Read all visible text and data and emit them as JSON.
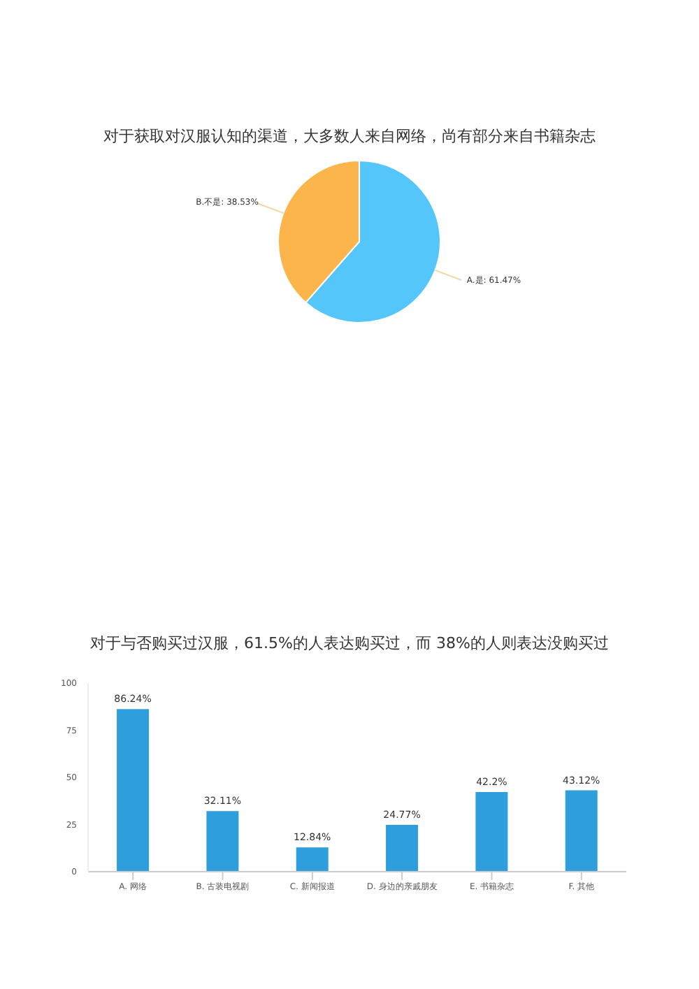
{
  "chart_data": [
    {
      "type": "pie",
      "title": "对于获取对汉服认知的渠道，大多数人来自网络，尚有部分来自书籍杂志",
      "categories": [
        "A.是",
        "B.不是"
      ],
      "values": [
        61.47,
        38.53
      ],
      "value_labels": [
        "61.47%",
        "38.53%"
      ],
      "colors": [
        "#55c6f9",
        "#fbb54b"
      ]
    },
    {
      "type": "bar",
      "title": "对于与否购买过汉服，61.5%的人表达购买过，而 38%的人则表达没购买过",
      "categories": [
        "A. 网络",
        "B. 古装电视剧",
        "C. 新闻报道",
        "D. 身边的亲戚朋友",
        "E. 书籍杂志",
        "F. 其他"
      ],
      "values": [
        86.24,
        32.11,
        12.84,
        24.77,
        42.2,
        43.12
      ],
      "value_labels": [
        "86.24%",
        "32.11%",
        "12.84%",
        "24.77%",
        "42.2%",
        "43.12%"
      ],
      "color": "#2e9fdc",
      "ylim": [
        0,
        100
      ],
      "yticks": [
        0,
        25,
        50,
        75,
        100
      ],
      "grid": false,
      "legend": false
    }
  ]
}
